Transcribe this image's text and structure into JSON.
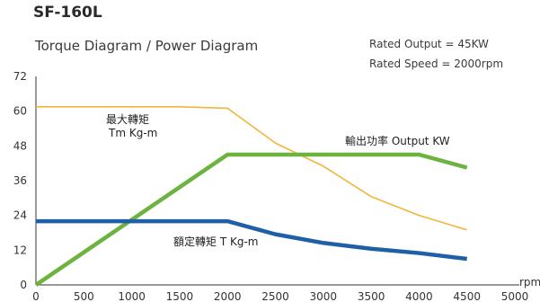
{
  "header": {
    "title": "SF-160L",
    "subtitle": "Torque Diagram / Power Diagram",
    "rated_output": "Rated Output = 45KW",
    "rated_speed": "Rated Speed = 2000rpm"
  },
  "chart_data": {
    "type": "line",
    "title": "SF-160L",
    "subtitle": "Torque Diagram / Power Diagram",
    "xlabel": "rpm",
    "ylabel": "",
    "xlim": [
      0,
      5000
    ],
    "ylim": [
      0,
      72
    ],
    "xticks": [
      0,
      500,
      1000,
      1500,
      2000,
      2500,
      3000,
      3500,
      4000,
      4500,
      5000
    ],
    "yticks": [
      0,
      12,
      24,
      36,
      48,
      60,
      72
    ],
    "grid": false,
    "legend": "none",
    "annotations": {
      "max_torque_line1": "最大轉矩",
      "max_torque_line2": "Tm Kg-m",
      "output": "輸出功率 Output KW",
      "rated_torque": "額定轉矩  T Kg-m"
    },
    "series": [
      {
        "name": "最大轉矩 Tm Kg-m",
        "color": "#f0b63c",
        "x": [
          0,
          1500,
          2000,
          2500,
          3000,
          3500,
          4000,
          4500
        ],
        "y": [
          61.5,
          61.5,
          61,
          49,
          41,
          30.5,
          24,
          19
        ]
      },
      {
        "name": "輸出功率 Output KW",
        "color": "#6db33f",
        "x": [
          0,
          2000,
          4000,
          4500
        ],
        "y": [
          0,
          45,
          45,
          40.5
        ]
      },
      {
        "name": "額定轉矩 T Kg-m",
        "color": "#1f5fa8",
        "x": [
          0,
          2000,
          2500,
          3000,
          3500,
          4000,
          4500
        ],
        "y": [
          22,
          22,
          17.5,
          14.5,
          12.5,
          11,
          9
        ]
      }
    ]
  }
}
